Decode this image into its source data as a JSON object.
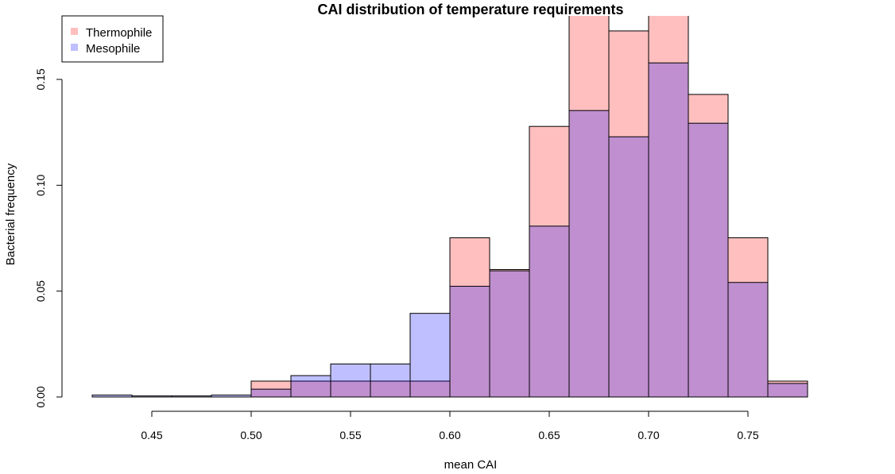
{
  "chart_data": {
    "type": "bar",
    "title": "CAI distribution of temperature requirements",
    "xlabel": "mean CAI",
    "ylabel": "Bacterial frequency",
    "bin_edges": [
      0.42,
      0.44,
      0.46,
      0.48,
      0.5,
      0.52,
      0.54,
      0.56,
      0.58,
      0.6,
      0.62,
      0.64,
      0.66,
      0.68,
      0.7,
      0.72,
      0.74,
      0.76
    ],
    "series": [
      {
        "name": "Thermophile",
        "color": "#ff000040",
        "values": [
          0,
          0,
          0,
          0,
          0.0075,
          0.0075,
          0.0075,
          0.0075,
          0.0075,
          0.0752,
          0.0602,
          0.1278,
          0.1805,
          0.1729,
          0.1805,
          0.1429,
          0.0752,
          0.0075
        ]
      },
      {
        "name": "Mesophile",
        "color": "#0000ff40",
        "values": [
          0.0009,
          0.0005,
          0.0005,
          0.0009,
          0.0037,
          0.0101,
          0.0156,
          0.0156,
          0.0395,
          0.0523,
          0.0596,
          0.0807,
          0.1353,
          0.1229,
          0.1578,
          0.1293,
          0.0541,
          0.0064
        ]
      }
    ],
    "x_ticks": [
      "0.45",
      "0.50",
      "0.55",
      "0.60",
      "0.65",
      "0.70",
      "0.75"
    ],
    "x_tick_values": [
      0.45,
      0.5,
      0.55,
      0.6,
      0.65,
      0.7,
      0.75
    ],
    "y_ticks": [
      "0.00",
      "0.05",
      "0.10",
      "0.15"
    ],
    "y_tick_values": [
      0,
      0.05,
      0.1,
      0.15
    ],
    "xlim": [
      0.42,
      0.77
    ],
    "ylim": [
      0,
      0.18
    ],
    "grid": false,
    "legend": {
      "position": "top-left",
      "entries": [
        {
          "label": "Thermophile",
          "color": "#ff000040"
        },
        {
          "label": "Mesophile",
          "color": "#0000ff40"
        }
      ]
    }
  }
}
